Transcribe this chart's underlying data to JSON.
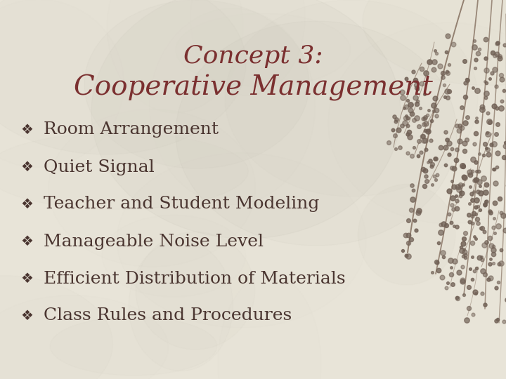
{
  "title_line1": "Concept 3:",
  "title_line2": "Cooperative Management",
  "title_color": "#7B3030",
  "bullet_items": [
    "Room Arrangement",
    "Quiet Signal",
    "Teacher and Student Modeling",
    "Manageable Noise Level",
    "Efficient Distribution of Materials",
    "Class Rules and Procedures"
  ],
  "bullet_color": "#4A3530",
  "bullet_symbol": "❖",
  "background_color": "#E8E4D8",
  "title_fontsize": 26,
  "bullet_fontsize": 18,
  "figsize": [
    7.2,
    5.4
  ],
  "dpi": 100,
  "branch_color": "#857060",
  "dot_color": "#706055",
  "shadow_color": "#C8C4B8"
}
